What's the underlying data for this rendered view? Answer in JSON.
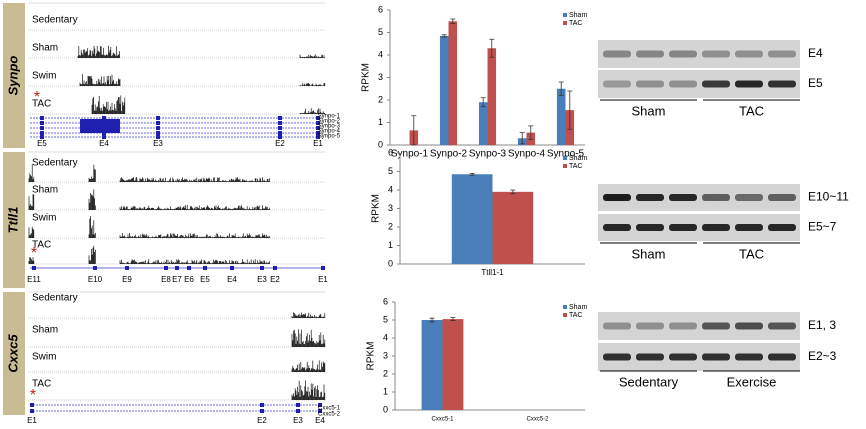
{
  "panels": [
    {
      "gene": "Synpo",
      "tracks": [
        "Sedentary",
        "Sham",
        "Swim",
        "TAC"
      ],
      "marker": "*",
      "exons": [
        "E5",
        "E4",
        "E3",
        "E2",
        "E1"
      ],
      "isoforms": [
        "Synpo-1",
        "Synpo-2",
        "Synpo-3",
        "Synpo-4",
        "Synpo-5"
      ],
      "gel": {
        "bands": [
          "E4",
          "E5"
        ],
        "groups": [
          "Sham",
          "TAC"
        ]
      }
    },
    {
      "gene": "Ttll1",
      "tracks": [
        "Sedentary",
        "Sham",
        "Swim",
        "TAC"
      ],
      "marker": "*",
      "exons": [
        "E11",
        "E10",
        "E9",
        "E8",
        "E7",
        "E6",
        "E5",
        "E4",
        "E3",
        "E2",
        "E1"
      ],
      "isoforms": [],
      "gel": {
        "bands": [
          "E10~11",
          "E5~7"
        ],
        "groups": [
          "Sham",
          "TAC"
        ]
      }
    },
    {
      "gene": "Cxxc5",
      "tracks": [
        "Sedentary",
        "Sham",
        "Swim",
        "TAC"
      ],
      "marker": "*",
      "exons": [
        "E1",
        "E2",
        "E3",
        "E4"
      ],
      "isoforms": [
        "Cxxc5-1",
        "Cxxc5-2"
      ],
      "gel": {
        "bands": [
          "E1, 3",
          "E2~3"
        ],
        "groups": [
          "Sedentary",
          "Exercise"
        ]
      }
    }
  ],
  "chart_data": [
    {
      "type": "bar",
      "y_label": "RPKM",
      "legend": "upper right",
      "categories": [
        "Synpo-1",
        "Synpo-2",
        "Synpo-3",
        "Synpo-4",
        "Synpo-5"
      ],
      "series": [
        {
          "name": "Sham",
          "color": "#4a7ebb",
          "values": [
            0,
            4.85,
            1.9,
            0.3,
            2.5
          ],
          "errors": [
            0,
            0.05,
            0.2,
            0.25,
            0.3
          ]
        },
        {
          "name": "TAC",
          "color": "#c0504d",
          "values": [
            0.65,
            5.5,
            4.3,
            0.55,
            1.55
          ],
          "errors": [
            0.65,
            0.1,
            0.4,
            0.3,
            0.85
          ]
        }
      ],
      "ylim": [
        0,
        6
      ],
      "yticks": [
        0,
        1,
        2,
        3,
        4,
        5,
        6
      ]
    },
    {
      "type": "bar",
      "y_label": "RPKM",
      "legend": "upper right",
      "categories": [
        "Ttll1-1"
      ],
      "series": [
        {
          "name": "Sham",
          "color": "#4a7ebb",
          "values": [
            4.85
          ],
          "errors": [
            0.05
          ]
        },
        {
          "name": "TAC",
          "color": "#c0504d",
          "values": [
            3.9
          ],
          "errors": [
            0.1
          ]
        }
      ],
      "ylim": [
        0,
        6
      ],
      "yticks": [
        0,
        1,
        2,
        3,
        4,
        5,
        6
      ]
    },
    {
      "type": "bar",
      "y_label": "RPKM",
      "legend": "upper right",
      "categories": [
        "Cxxc5-1",
        "Cxxc5-2"
      ],
      "series": [
        {
          "name": "Sham",
          "color": "#4a7ebb",
          "values": [
            5.0,
            0
          ],
          "errors": [
            0.1,
            0
          ]
        },
        {
          "name": "TAC",
          "color": "#c0504d",
          "values": [
            5.05,
            0
          ],
          "errors": [
            0.08,
            0
          ]
        }
      ],
      "ylim": [
        0,
        6
      ],
      "yticks": [
        0,
        1,
        2,
        3,
        4,
        5,
        6
      ]
    }
  ]
}
